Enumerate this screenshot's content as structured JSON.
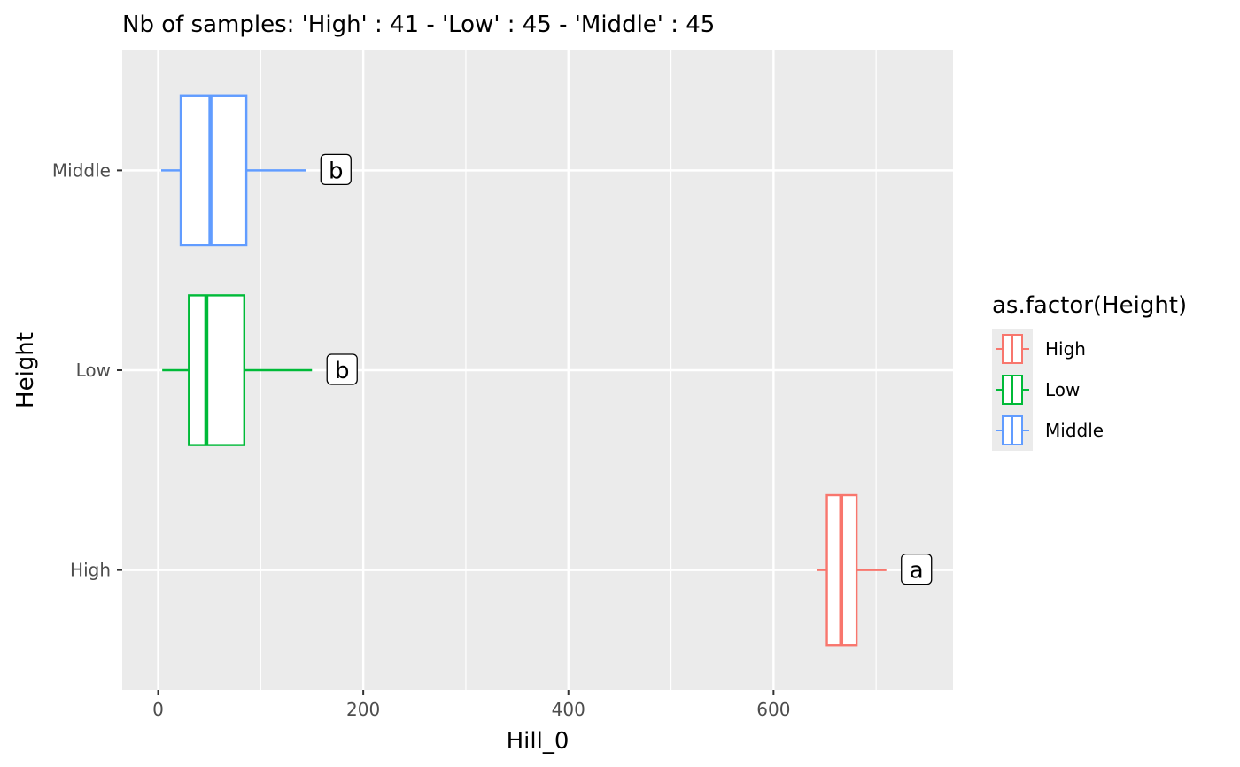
{
  "chart_data": {
    "type": "boxplot",
    "orientation": "horizontal",
    "title": "Nb of samples: 'High' : 41 - 'Low' : 45 - 'Middle' : 45",
    "xlabel": "Hill_0",
    "ylabel": "Height",
    "xlim": [
      -35,
      775
    ],
    "x_ticks": [
      0,
      200,
      400,
      600
    ],
    "grid": true,
    "legend": {
      "title": "as.factor(Height)",
      "position": "right",
      "entries": [
        "High",
        "Low",
        "Middle"
      ]
    },
    "categories": [
      "High",
      "Low",
      "Middle"
    ],
    "series": [
      {
        "name": "High",
        "color": "#F8766D",
        "whisker_low": 642,
        "q1": 652,
        "median": 666,
        "q3": 681,
        "whisker_high": 710,
        "letter": "a"
      },
      {
        "name": "Low",
        "color": "#00BA38",
        "whisker_low": 4,
        "q1": 30,
        "median": 47,
        "q3": 84,
        "whisker_high": 150,
        "letter": "b"
      },
      {
        "name": "Middle",
        "color": "#619CFF",
        "whisker_low": 3,
        "q1": 22,
        "median": 51,
        "q3": 86,
        "whisker_high": 144,
        "letter": "b"
      }
    ]
  }
}
